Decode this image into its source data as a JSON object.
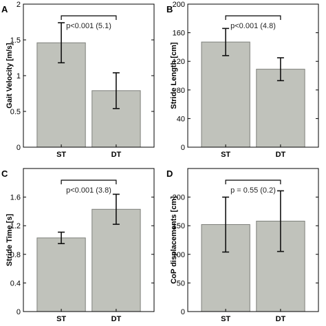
{
  "chart_data": [
    {
      "type": "bar",
      "panel": "A",
      "categories": [
        "ST",
        "DT"
      ],
      "values": [
        1.46,
        0.79
      ],
      "errors": [
        0.28,
        0.25
      ],
      "ylabel": "Gait Velocity [m/s]",
      "ylim": [
        0,
        2
      ],
      "yticks": [
        0,
        0.5,
        1,
        1.5,
        2
      ],
      "ytick_labels": [
        "0",
        "0.5",
        "1",
        "1.5",
        "2"
      ],
      "annotation": "p<0.001 (5.1)",
      "colors": {
        "bar": "#c0c2bb",
        "edge": "#7d7f7a"
      }
    },
    {
      "type": "bar",
      "panel": "B",
      "categories": [
        "ST",
        "DT"
      ],
      "values": [
        147,
        109
      ],
      "errors": [
        19,
        16
      ],
      "ylabel": "Stride Length [cm]",
      "ylim": [
        0,
        200
      ],
      "yticks": [
        0,
        40,
        80,
        120,
        160,
        200
      ],
      "ytick_labels": [
        "0",
        "40",
        "80",
        "120",
        "160",
        "200"
      ],
      "annotation": "p<0.001 (4.8)",
      "colors": {
        "bar": "#c0c2bb",
        "edge": "#7d7f7a"
      }
    },
    {
      "type": "bar",
      "panel": "C",
      "categories": [
        "ST",
        "DT"
      ],
      "values": [
        1.03,
        1.43
      ],
      "errors": [
        0.08,
        0.21
      ],
      "ylabel": "Stride Time [s]",
      "ylim": [
        0,
        2
      ],
      "yticks": [
        0,
        0.4,
        0.8,
        1.2,
        1.6
      ],
      "ytick_labels": [
        "0",
        "0.4",
        "0.8",
        "1.2",
        "1.6"
      ],
      "annotation": "p<0.001 (3.8)",
      "colors": {
        "bar": "#c0c2bb",
        "edge": "#7d7f7a"
      }
    },
    {
      "type": "bar",
      "panel": "D",
      "categories": [
        "ST",
        "DT"
      ],
      "values": [
        152,
        158
      ],
      "errors": [
        48,
        53
      ],
      "ylabel": "CoP displacements [cm]",
      "ylim": [
        0,
        250
      ],
      "yticks": [
        0,
        50,
        100,
        150,
        200
      ],
      "ytick_labels": [
        "0",
        "50",
        "100",
        "150",
        "200"
      ],
      "annotation": "p = 0.55 (0.2)",
      "colors": {
        "bar": "#c0c2bb",
        "edge": "#7d7f7a"
      }
    }
  ]
}
